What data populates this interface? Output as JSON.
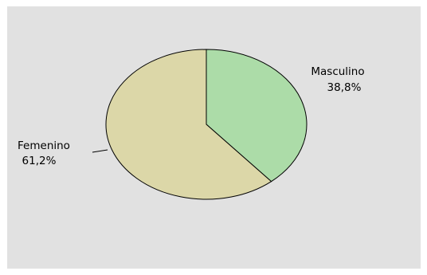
{
  "chart_data": {
    "type": "pie",
    "slices": [
      {
        "label": "Masculino",
        "value": 38.8,
        "value_text": "38,8%",
        "color": "#acdca8"
      },
      {
        "label": "Femenino",
        "value": 61.2,
        "value_text": "61,2%",
        "color": "#dcd7a8"
      }
    ],
    "start_angle": "top",
    "direction": "clockwise",
    "background": "#e1e1e1",
    "outline_color": "#000000"
  }
}
